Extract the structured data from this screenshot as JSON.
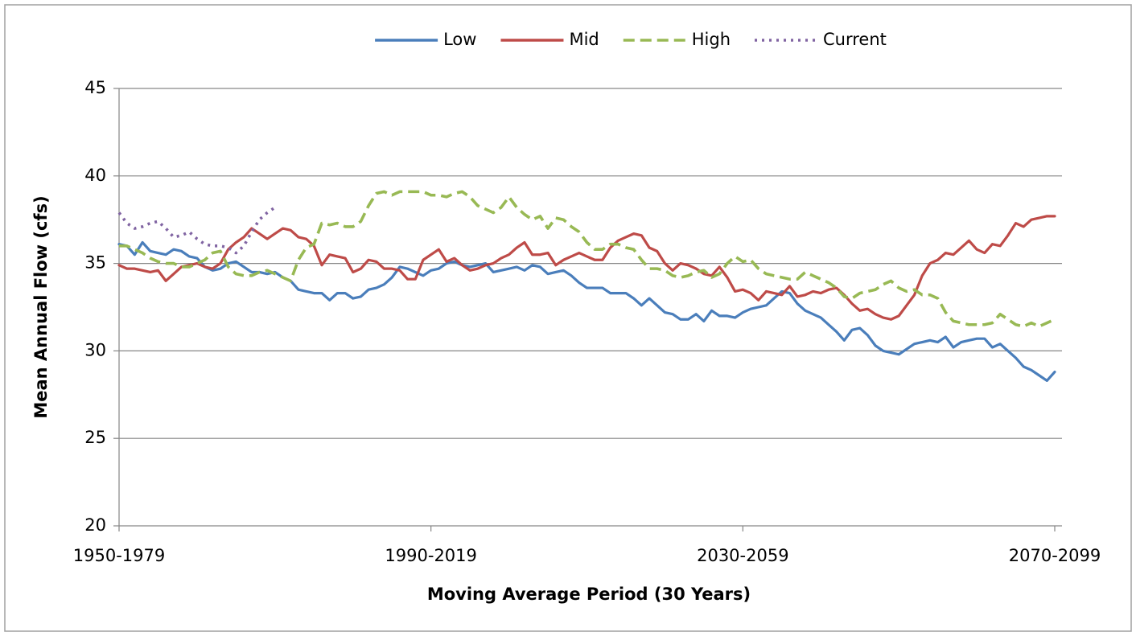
{
  "chart_data": {
    "type": "line",
    "y_label": "Mean Annual Flow (cfs)",
    "x_label": "Moving Average Period (30 Years)",
    "categories": [
      "1950-1979",
      null,
      null,
      null,
      null,
      null,
      null,
      null,
      null,
      null,
      null,
      null,
      null,
      null,
      null,
      null,
      null,
      null,
      null,
      null,
      null,
      null,
      null,
      null,
      null,
      null,
      null,
      null,
      null,
      null,
      null,
      null,
      null,
      null,
      null,
      null,
      null,
      null,
      null,
      null,
      "1990-2019",
      null,
      null,
      null,
      null,
      null,
      null,
      null,
      null,
      null,
      null,
      null,
      null,
      null,
      null,
      null,
      null,
      null,
      null,
      null,
      null,
      null,
      null,
      null,
      null,
      null,
      null,
      null,
      null,
      null,
      null,
      null,
      null,
      null,
      null,
      null,
      null,
      null,
      null,
      null,
      "2030-2059",
      null,
      null,
      null,
      null,
      null,
      null,
      null,
      null,
      null,
      null,
      null,
      null,
      null,
      null,
      null,
      null,
      null,
      null,
      null,
      null,
      null,
      null,
      null,
      null,
      null,
      null,
      null,
      null,
      null,
      null,
      null,
      null,
      null,
      null,
      null,
      null,
      null,
      null,
      null,
      "2070-2099"
    ],
    "ylim": [
      20,
      45
    ],
    "yticks": [
      20,
      25,
      30,
      35,
      40,
      45
    ],
    "grid": true,
    "legend": "top",
    "series": [
      {
        "name": "Low",
        "color": "#4a7ebb",
        "style": "solid",
        "values": [
          36.1,
          36.0,
          35.5,
          36.2,
          35.7,
          35.6,
          35.5,
          35.8,
          35.7,
          35.4,
          35.3,
          34.8,
          34.6,
          34.7,
          35.0,
          35.1,
          34.8,
          34.5,
          34.5,
          34.4,
          34.5,
          34.2,
          34.0,
          33.5,
          33.4,
          33.3,
          33.3,
          32.9,
          33.3,
          33.3,
          33.0,
          33.1,
          33.5,
          33.6,
          33.8,
          34.2,
          34.8,
          34.7,
          34.5,
          34.3,
          34.6,
          34.7,
          35.0,
          35.1,
          34.9,
          34.8,
          34.9,
          35.0,
          34.5,
          34.6,
          34.7,
          34.8,
          34.6,
          34.9,
          34.8,
          34.4,
          34.5,
          34.6,
          34.3,
          33.9,
          33.6,
          33.6,
          33.6,
          33.3,
          33.3,
          33.3,
          33.0,
          32.6,
          33.0,
          32.6,
          32.2,
          32.1,
          31.8,
          31.8,
          32.1,
          31.7,
          32.3,
          32.0,
          32.0,
          31.9,
          32.2,
          32.4,
          32.5,
          32.6,
          33.0,
          33.4,
          33.3,
          32.7,
          32.3,
          32.1,
          31.9,
          31.5,
          31.1,
          30.6,
          31.2,
          31.3,
          30.9,
          30.3,
          30.0,
          29.9,
          29.8,
          30.1,
          30.4,
          30.5,
          30.6,
          30.5,
          30.8,
          30.2,
          30.5,
          30.6,
          30.7,
          30.7,
          30.2,
          30.4,
          30.0,
          29.6,
          29.1,
          28.9,
          28.6,
          28.3,
          28.8
        ]
      },
      {
        "name": "Mid",
        "color": "#be4b48",
        "style": "solid",
        "values": [
          34.9,
          34.7,
          34.7,
          34.6,
          34.5,
          34.6,
          34.0,
          34.4,
          34.8,
          34.9,
          35.0,
          34.8,
          34.7,
          35.0,
          35.8,
          36.2,
          36.5,
          37.0,
          36.7,
          36.4,
          36.7,
          37.0,
          36.9,
          36.5,
          36.4,
          36.0,
          34.9,
          35.5,
          35.4,
          35.3,
          34.5,
          34.7,
          35.2,
          35.1,
          34.7,
          34.7,
          34.6,
          34.1,
          34.1,
          35.2,
          35.5,
          35.8,
          35.1,
          35.3,
          34.9,
          34.6,
          34.7,
          34.9,
          35.0,
          35.3,
          35.5,
          35.9,
          36.2,
          35.5,
          35.5,
          35.6,
          34.9,
          35.2,
          35.4,
          35.6,
          35.4,
          35.2,
          35.2,
          35.9,
          36.3,
          36.5,
          36.7,
          36.6,
          35.9,
          35.7,
          35.0,
          34.6,
          35.0,
          34.9,
          34.7,
          34.4,
          34.3,
          34.8,
          34.2,
          33.4,
          33.5,
          33.3,
          32.9,
          33.4,
          33.3,
          33.2,
          33.7,
          33.1,
          33.2,
          33.4,
          33.3,
          33.5,
          33.6,
          33.2,
          32.7,
          32.3,
          32.4,
          32.1,
          31.9,
          31.8,
          32.0,
          32.6,
          33.2,
          34.3,
          35.0,
          35.2,
          35.6,
          35.5,
          35.9,
          36.3,
          35.8,
          35.6,
          36.1,
          36.0,
          36.6,
          37.3,
          37.1,
          37.5,
          37.6,
          37.7,
          37.7
        ]
      },
      {
        "name": "High",
        "color": "#98b954",
        "style": "dashed",
        "values": [
          36.0,
          36.0,
          35.8,
          35.6,
          35.3,
          35.1,
          35.0,
          35.0,
          34.8,
          34.8,
          35.0,
          35.2,
          35.6,
          35.7,
          34.8,
          34.4,
          34.3,
          34.3,
          34.5,
          34.6,
          34.4,
          34.2,
          34.0,
          35.2,
          35.9,
          36.1,
          37.3,
          37.2,
          37.3,
          37.1,
          37.1,
          37.4,
          38.3,
          39.0,
          39.1,
          38.9,
          39.1,
          39.1,
          39.1,
          39.1,
          38.9,
          38.9,
          38.8,
          39.0,
          39.1,
          38.8,
          38.3,
          38.1,
          37.9,
          38.2,
          38.8,
          38.2,
          37.8,
          37.5,
          37.7,
          37.0,
          37.6,
          37.5,
          37.1,
          36.8,
          36.2,
          35.8,
          35.8,
          36.1,
          36.1,
          35.9,
          35.8,
          35.2,
          34.7,
          34.7,
          34.6,
          34.3,
          34.2,
          34.3,
          34.5,
          34.6,
          34.2,
          34.4,
          35.0,
          35.4,
          35.1,
          35.2,
          34.7,
          34.4,
          34.3,
          34.2,
          34.1,
          34.1,
          34.5,
          34.3,
          34.1,
          33.9,
          33.6,
          33.1,
          33.0,
          33.3,
          33.4,
          33.5,
          33.8,
          34.0,
          33.6,
          33.4,
          33.5,
          33.2,
          33.2,
          33.0,
          32.2,
          31.7,
          31.6,
          31.5,
          31.5,
          31.5,
          31.6,
          32.1,
          31.8,
          31.5,
          31.4,
          31.6,
          31.4,
          31.6,
          31.8
        ]
      },
      {
        "name": "Current",
        "color": "#8064a2",
        "style": "dotted",
        "values": [
          37.9,
          37.3,
          37.0,
          37.1,
          37.3,
          37.4,
          37.0,
          36.5,
          36.6,
          36.8,
          36.4,
          36.1,
          36.0,
          36.0,
          35.9,
          35.6,
          36.0,
          36.8,
          37.5,
          37.9,
          38.2,
          null,
          null,
          null,
          null,
          null,
          null,
          null,
          null,
          null,
          null,
          null,
          null,
          null,
          null,
          null,
          null,
          null,
          null,
          null,
          null,
          null,
          null,
          null,
          null,
          null,
          null,
          null,
          null,
          null,
          null,
          null,
          null,
          null,
          null,
          null,
          null,
          null,
          null,
          null,
          null,
          null,
          null,
          null,
          null,
          null,
          null,
          null,
          null,
          null,
          null,
          null,
          null,
          null,
          null,
          null,
          null,
          null,
          null,
          null,
          null,
          null,
          null,
          null,
          null,
          null,
          null,
          null,
          null,
          null,
          null,
          null,
          null,
          null,
          null,
          null,
          null,
          null,
          null,
          null,
          null,
          null,
          null,
          null,
          null,
          null,
          null,
          null,
          null,
          null,
          null,
          null,
          null,
          null,
          null,
          null,
          null,
          null,
          null,
          null,
          null
        ]
      }
    ]
  }
}
